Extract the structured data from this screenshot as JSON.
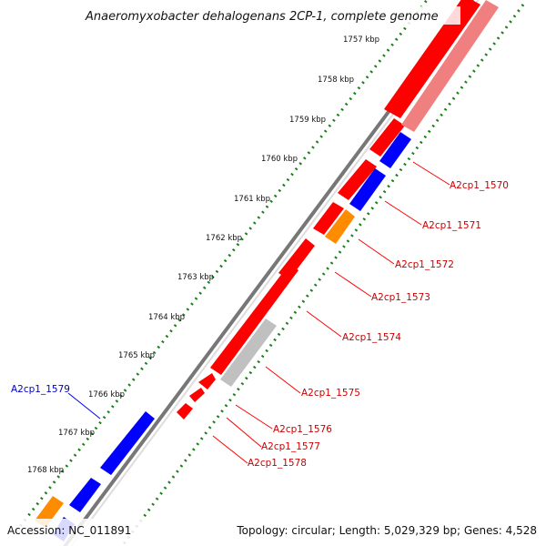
{
  "title": "Anaeromyxobacter dehalogenans 2CP-1, complete genome",
  "footer": {
    "accession": "Accession: NC_011891",
    "summary": "Topology: circular; Length: 5,029,329 bp; Genes: 4,528"
  },
  "colors": {
    "forward_gene": "#ff0000",
    "forward_gene_faded": "#f08080",
    "reverse_gene": "#0000ff",
    "rna_gene": "#ff8c00",
    "pseudo_gene": "#c0c0c0",
    "backbone": "#808080",
    "tick_dots": "#1a7f1a",
    "label_red": "#cc0000",
    "label_blue": "#0000cc"
  },
  "ticks": [
    "1757 kbp",
    "1758 kbp",
    "1759 kbp",
    "1760 kbp",
    "1761 kbp",
    "1762 kbp",
    "1763 kbp",
    "1764 kbp",
    "1765 kbp",
    "1766 kbp",
    "1767 kbp",
    "1768 kbp"
  ],
  "gene_labels": [
    {
      "name": "A2cp1_1570",
      "color": "red"
    },
    {
      "name": "A2cp1_1571",
      "color": "red"
    },
    {
      "name": "A2cp1_1572",
      "color": "red"
    },
    {
      "name": "A2cp1_1573",
      "color": "red"
    },
    {
      "name": "A2cp1_1574",
      "color": "red"
    },
    {
      "name": "A2cp1_1575",
      "color": "red"
    },
    {
      "name": "A2cp1_1576",
      "color": "red"
    },
    {
      "name": "A2cp1_1577",
      "color": "red"
    },
    {
      "name": "A2cp1_1578",
      "color": "red"
    },
    {
      "name": "A2cp1_1579",
      "color": "blue"
    }
  ]
}
